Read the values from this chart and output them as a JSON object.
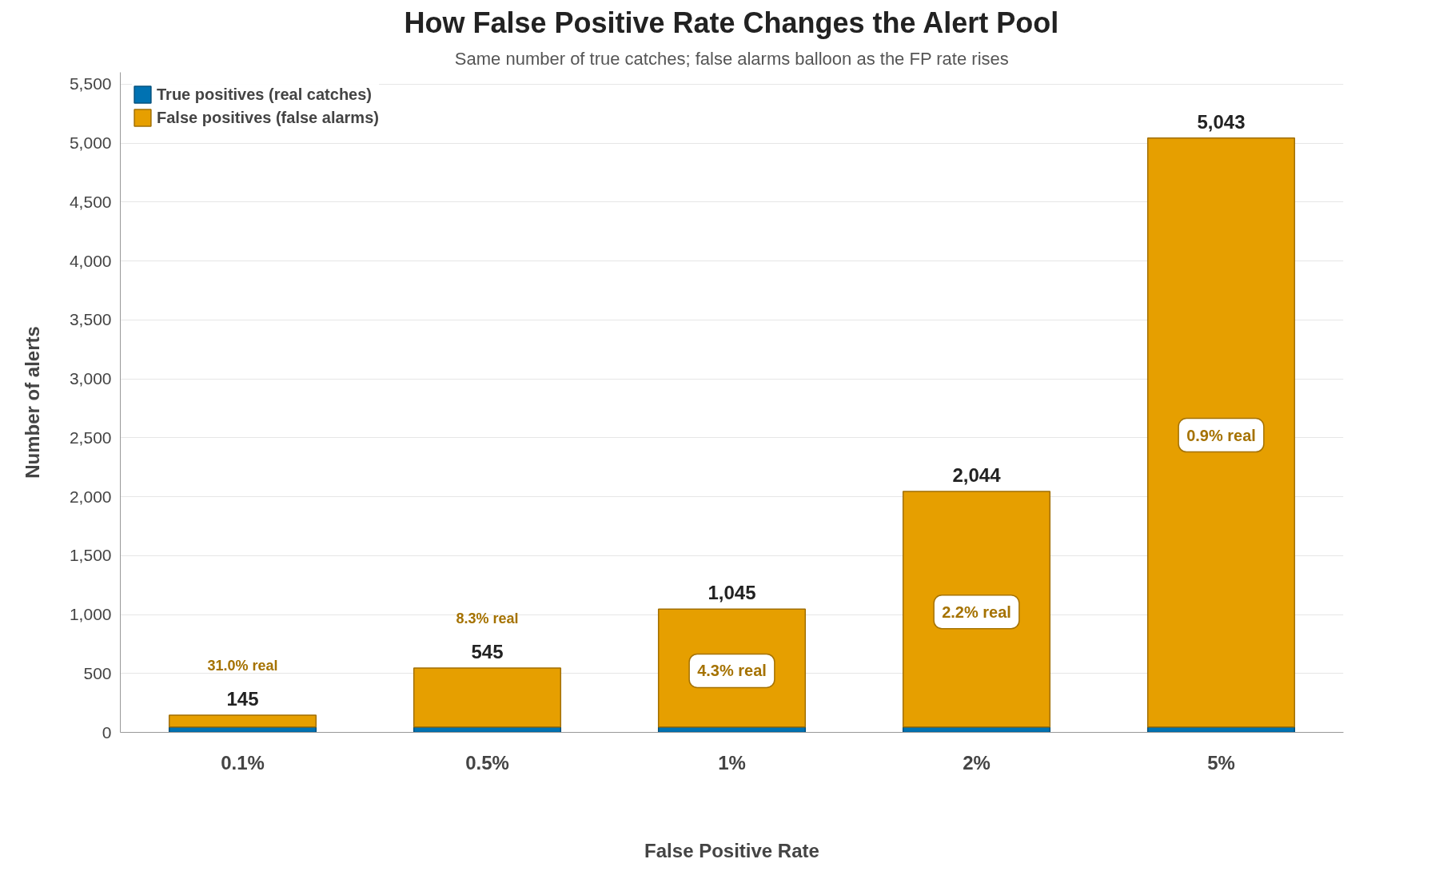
{
  "chart_data": {
    "type": "bar",
    "title": "How False Positive Rate Changes the Alert Pool",
    "subtitle": "Same number of true catches; false alarms balloon as the FP rate rises",
    "xlabel": "False Positive Rate",
    "ylabel": "Number of alerts",
    "categories": [
      "0.1%",
      "0.5%",
      "1%",
      "2%",
      "5%"
    ],
    "stacked": true,
    "series": [
      {
        "name": "True positives (real catches)",
        "color": "#0072b2",
        "values": [
          45,
          45,
          45,
          45,
          45
        ]
      },
      {
        "name": "False positives (false alarms)",
        "color": "#e69f00",
        "values": [
          100,
          500,
          1000,
          1999,
          4998
        ]
      }
    ],
    "totals": [
      "145",
      "545",
      "1,045",
      "2,044",
      "5,043"
    ],
    "annotations": [
      "31.0% real",
      "8.3% real",
      "4.3% real",
      "2.2% real",
      "0.9% real"
    ],
    "ylim": [
      0,
      5600
    ],
    "yticks": [
      0,
      {
        "value": 500,
        "label": "500"
      },
      {
        "value": 1000,
        "label": "1,000"
      },
      {
        "value": 1500,
        "label": "1,500"
      },
      {
        "value": 2000,
        "label": "2,000"
      },
      {
        "value": 2500,
        "label": "2,500"
      },
      {
        "value": 3000,
        "label": "3,000"
      },
      {
        "value": 3500,
        "label": "3,500"
      },
      {
        "value": 4000,
        "label": "4,000"
      },
      {
        "value": 4500,
        "label": "4,500"
      },
      {
        "value": 5000,
        "label": "5,000"
      },
      {
        "value": 5500,
        "label": "5,500"
      }
    ],
    "grid": "y",
    "legend": "top left"
  }
}
